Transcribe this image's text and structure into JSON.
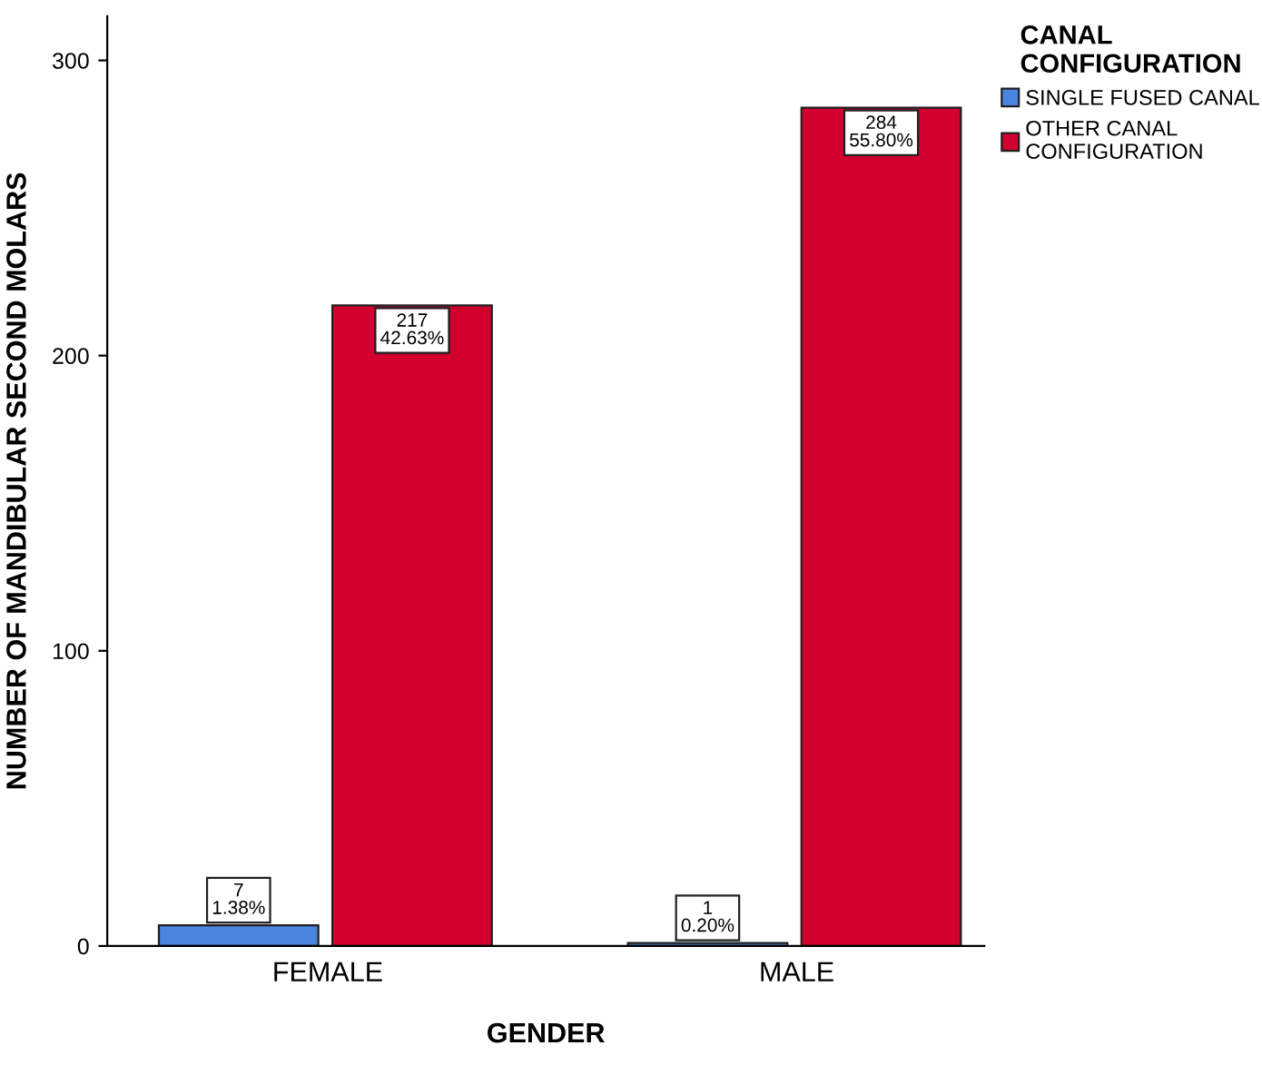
{
  "chart_data": {
    "type": "bar",
    "xlabel": "GENDER",
    "ylabel": "NUMBER OF MANDIBULAR SECOND MOLARS",
    "legend_title": "CANAL\nCONFIGURATION",
    "categories": [
      "FEMALE",
      "MALE"
    ],
    "series": [
      {
        "name": "SINGLE FUSED CANAL",
        "color": "#4a86e0",
        "values": [
          7,
          1
        ],
        "value_labels": [
          "7\n1.38%",
          "1\n0.20%"
        ]
      },
      {
        "name": "OTHER CANAL\nCONFIGURATION",
        "color": "#d2002e",
        "values": [
          217,
          284
        ],
        "value_labels": [
          "217\n42.63%",
          "284\n55.80%"
        ]
      }
    ],
    "ylim": [
      0,
      315
    ],
    "yticks": [
      0,
      100,
      200,
      300
    ],
    "grid": false,
    "legend": "top right"
  }
}
